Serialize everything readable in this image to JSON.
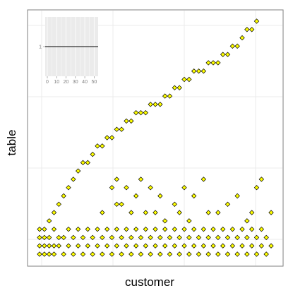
{
  "chart_data": {
    "type": "scatter",
    "title": "",
    "xlabel": "customer",
    "ylabel": "table",
    "x_tick_labels": [],
    "y_tick_labels": [],
    "grid": true,
    "marker": {
      "shape": "diamond",
      "fill": "#ffff00",
      "stroke": "#000000"
    },
    "series": [
      {
        "points": [
          [
            2,
            2
          ],
          [
            3,
            4
          ],
          [
            4,
            5
          ],
          [
            5,
            6
          ],
          [
            6,
            7
          ],
          [
            7,
            8
          ],
          [
            8,
            9
          ],
          [
            9,
            10
          ],
          [
            10,
            11
          ],
          [
            11,
            11
          ],
          [
            12,
            12
          ],
          [
            13,
            13
          ],
          [
            14,
            13
          ],
          [
            15,
            14
          ],
          [
            16,
            14
          ],
          [
            17,
            15
          ],
          [
            18,
            15
          ],
          [
            19,
            16
          ],
          [
            20,
            16
          ],
          [
            21,
            17
          ],
          [
            22,
            17
          ],
          [
            23,
            17
          ],
          [
            24,
            18
          ],
          [
            25,
            18
          ],
          [
            26,
            18
          ],
          [
            27,
            19
          ],
          [
            28,
            19
          ],
          [
            29,
            20
          ],
          [
            30,
            20
          ],
          [
            31,
            21
          ],
          [
            32,
            21
          ],
          [
            33,
            22
          ],
          [
            34,
            22
          ],
          [
            35,
            22
          ],
          [
            36,
            23
          ],
          [
            37,
            23
          ],
          [
            38,
            23
          ],
          [
            39,
            24
          ],
          [
            40,
            24
          ],
          [
            41,
            25
          ],
          [
            42,
            25
          ],
          [
            43,
            26
          ],
          [
            44,
            27
          ],
          [
            45,
            27
          ],
          [
            46,
            28
          ],
          [
            14,
            5
          ],
          [
            17,
            6
          ],
          [
            16,
            8
          ],
          [
            17,
            9
          ],
          [
            18,
            6
          ],
          [
            19,
            8
          ],
          [
            21,
            7
          ],
          [
            20,
            5
          ],
          [
            22,
            9
          ],
          [
            23,
            5
          ],
          [
            24,
            8
          ],
          [
            25,
            5
          ],
          [
            26,
            7
          ],
          [
            27,
            4
          ],
          [
            29,
            6
          ],
          [
            30,
            5
          ],
          [
            31,
            8
          ],
          [
            32,
            4
          ],
          [
            33,
            7
          ],
          [
            35,
            9
          ],
          [
            36,
            5
          ],
          [
            38,
            5
          ],
          [
            40,
            6
          ],
          [
            42,
            7
          ],
          [
            44,
            4
          ],
          [
            45,
            5
          ],
          [
            46,
            8
          ],
          [
            47,
            9
          ],
          [
            49,
            5
          ],
          [
            1,
            0
          ],
          [
            1,
            1
          ],
          [
            1,
            2
          ],
          [
            1,
            3
          ],
          [
            2,
            0
          ],
          [
            2,
            1
          ],
          [
            2,
            3
          ],
          [
            3,
            0
          ],
          [
            3,
            1
          ],
          [
            3,
            2
          ],
          [
            4,
            0
          ],
          [
            4,
            1
          ],
          [
            4,
            3
          ],
          [
            5,
            1
          ],
          [
            5,
            2
          ],
          [
            6,
            0
          ],
          [
            6,
            2
          ],
          [
            7,
            1
          ],
          [
            7,
            3
          ],
          [
            8,
            0
          ],
          [
            8,
            2
          ],
          [
            9,
            1
          ],
          [
            9,
            3
          ],
          [
            10,
            0
          ],
          [
            10,
            2
          ],
          [
            11,
            1
          ],
          [
            11,
            3
          ],
          [
            12,
            0
          ],
          [
            12,
            2
          ],
          [
            13,
            1
          ],
          [
            13,
            3
          ],
          [
            14,
            0
          ],
          [
            14,
            2
          ],
          [
            15,
            1
          ],
          [
            15,
            3
          ],
          [
            16,
            0
          ],
          [
            16,
            2
          ],
          [
            17,
            1
          ],
          [
            17,
            3
          ],
          [
            18,
            0
          ],
          [
            18,
            2
          ],
          [
            19,
            1
          ],
          [
            19,
            3
          ],
          [
            20,
            0
          ],
          [
            20,
            2
          ],
          [
            21,
            1
          ],
          [
            21,
            3
          ],
          [
            22,
            0
          ],
          [
            22,
            2
          ],
          [
            23,
            1
          ],
          [
            23,
            3
          ],
          [
            24,
            0
          ],
          [
            24,
            2
          ],
          [
            25,
            1
          ],
          [
            25,
            3
          ],
          [
            26,
            0
          ],
          [
            26,
            2
          ],
          [
            27,
            1
          ],
          [
            27,
            3
          ],
          [
            28,
            0
          ],
          [
            28,
            2
          ],
          [
            29,
            1
          ],
          [
            29,
            3
          ],
          [
            30,
            0
          ],
          [
            30,
            2
          ],
          [
            31,
            1
          ],
          [
            31,
            3
          ],
          [
            32,
            0
          ],
          [
            32,
            2
          ],
          [
            33,
            1
          ],
          [
            33,
            3
          ],
          [
            34,
            0
          ],
          [
            34,
            2
          ],
          [
            35,
            1
          ],
          [
            35,
            3
          ],
          [
            36,
            0
          ],
          [
            36,
            2
          ],
          [
            37,
            1
          ],
          [
            37,
            3
          ],
          [
            38,
            0
          ],
          [
            38,
            2
          ],
          [
            39,
            1
          ],
          [
            39,
            3
          ],
          [
            40,
            0
          ],
          [
            40,
            2
          ],
          [
            41,
            1
          ],
          [
            41,
            3
          ],
          [
            42,
            0
          ],
          [
            42,
            2
          ],
          [
            43,
            1
          ],
          [
            43,
            3
          ],
          [
            44,
            0
          ],
          [
            44,
            2
          ],
          [
            45,
            1
          ],
          [
            45,
            3
          ],
          [
            46,
            0
          ],
          [
            46,
            2
          ],
          [
            47,
            1
          ],
          [
            47,
            3
          ],
          [
            48,
            0
          ],
          [
            48,
            2
          ],
          [
            49,
            1
          ]
        ]
      }
    ],
    "inset": {
      "x_tick_labels": [
        "0",
        "10",
        "20",
        "30",
        "40",
        "50"
      ],
      "y_tick_labels": [
        "1"
      ],
      "xlim": [
        0,
        52
      ],
      "ylim": [
        0,
        2
      ],
      "line_y": 1
    }
  }
}
